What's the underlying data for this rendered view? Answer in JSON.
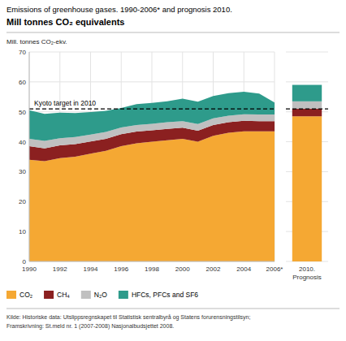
{
  "chart_data": [
    {
      "type": "area",
      "stacked": true,
      "title": "Emissions of greenhouse gases. 1990-2006* and prognosis 2010.",
      "subtitle": "Mill tonnes CO₂ equivalents",
      "ylabel": "Mill. tonnes CO₂-ekv.",
      "x": [
        1990,
        1991,
        1992,
        1993,
        1994,
        1995,
        1996,
        1997,
        1998,
        1999,
        2000,
        2001,
        2002,
        2003,
        2004,
        2005,
        2006
      ],
      "series": [
        {
          "name": "CO₂",
          "color": "#F5A833",
          "values": [
            34.0,
            33.5,
            34.5,
            35.0,
            36.0,
            37.0,
            38.5,
            39.5,
            40.0,
            40.5,
            41.0,
            40.0,
            42.0,
            43.0,
            43.5,
            43.5,
            43.5
          ]
        },
        {
          "name": "CH₄",
          "color": "#8B2020",
          "values": [
            4.5,
            4.3,
            4.3,
            4.2,
            4.1,
            4.0,
            4.0,
            3.9,
            3.8,
            3.8,
            3.7,
            3.7,
            3.6,
            3.5,
            3.5,
            3.4,
            3.4
          ]
        },
        {
          "name": "N₂O",
          "color": "#C0C0C0",
          "values": [
            2.5,
            2.5,
            2.4,
            2.4,
            2.3,
            2.3,
            2.3,
            2.2,
            2.2,
            2.2,
            2.2,
            2.2,
            2.2,
            2.2,
            2.2,
            2.2,
            2.2
          ]
        },
        {
          "name": "HFCs, PFCs and SF6",
          "color": "#2E9B8B",
          "values": [
            9.5,
            9.0,
            8.5,
            8.0,
            7.5,
            7.0,
            6.5,
            7.0,
            7.0,
            7.0,
            7.5,
            7.5,
            7.5,
            7.5,
            7.5,
            7.0,
            4.0
          ]
        }
      ],
      "xlim": [
        1990,
        2006
      ],
      "xticks": [
        1990,
        1992,
        1994,
        1996,
        1998,
        2000,
        2002,
        2004,
        {
          "value": 2006,
          "label": "2006*"
        }
      ],
      "ylim": [
        0,
        70
      ],
      "yticks": [
        0,
        10,
        20,
        30,
        40,
        50,
        60,
        70
      ],
      "grid": true,
      "legend": "bottom",
      "annotations": [
        {
          "text": "Kyoto target in 2010",
          "y": 51.0
        }
      ],
      "source": [
        "Kilde: Historiske data: Utslippsregnskapet til Statistisk sentralbyrå og Statens forurensningstilsyn;",
        "Framskrivning: St.meld nr. 1 (2007-2008) Nasjonalbudsjettet 2008."
      ]
    },
    {
      "type": "bar",
      "stacked": true,
      "categories": [
        "2010.\nPrognosis"
      ],
      "series": [
        {
          "color": "#F5A833",
          "values": [
            48.5
          ]
        },
        {
          "color": "#8B2020",
          "values": [
            2.5
          ]
        },
        {
          "color": "#C0C0C0",
          "values": [
            2.5
          ]
        },
        {
          "color": "#2E9B8B",
          "values": [
            5.5
          ]
        }
      ],
      "ylim": [
        0,
        70
      ],
      "yticks": [
        0,
        10,
        20,
        30,
        40,
        50,
        60,
        70
      ],
      "grid": true,
      "tick_labels": "x",
      "annotations": [
        {
          "y": 51.0
        }
      ]
    }
  ]
}
